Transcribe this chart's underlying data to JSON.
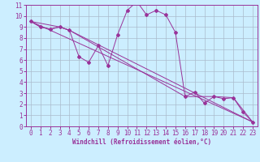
{
  "background_color": "#cceeff",
  "grid_color": "#aabbcc",
  "line_color": "#993399",
  "marker_color": "#993399",
  "xlabel": "Windchill (Refroidissement éolien,°C)",
  "xlim": [
    -0.5,
    23.5
  ],
  "ylim": [
    0,
    11
  ],
  "xticks": [
    0,
    1,
    2,
    3,
    4,
    5,
    6,
    7,
    8,
    9,
    10,
    11,
    12,
    13,
    14,
    15,
    16,
    17,
    18,
    19,
    20,
    21,
    22,
    23
  ],
  "yticks": [
    0,
    1,
    2,
    3,
    4,
    5,
    6,
    7,
    8,
    9,
    10,
    11
  ],
  "series1_x": [
    0,
    1,
    2,
    3,
    4,
    5,
    6,
    7,
    8,
    9,
    10,
    11,
    12,
    13,
    14,
    15,
    16,
    17,
    18,
    19,
    20,
    21,
    22,
    23
  ],
  "series1_y": [
    9.5,
    9.0,
    8.8,
    9.0,
    8.7,
    6.3,
    5.8,
    7.3,
    5.5,
    8.3,
    10.5,
    11.3,
    10.1,
    10.5,
    10.1,
    8.5,
    2.7,
    3.1,
    2.1,
    2.7,
    2.5,
    2.6,
    1.3,
    0.4
  ],
  "series2_x": [
    0,
    3,
    4,
    16,
    19,
    21,
    23
  ],
  "series2_y": [
    9.5,
    9.0,
    8.7,
    2.7,
    2.7,
    2.6,
    0.4
  ],
  "series3_x": [
    0,
    23
  ],
  "series3_y": [
    9.5,
    0.4
  ],
  "series4_x": [
    0,
    1,
    2,
    3,
    4,
    23
  ],
  "series4_y": [
    9.5,
    9.0,
    8.8,
    9.0,
    8.7,
    0.4
  ],
  "tick_fontsize": 5.5,
  "xlabel_fontsize": 5.5,
  "lw": 0.7,
  "ms": 2.0
}
